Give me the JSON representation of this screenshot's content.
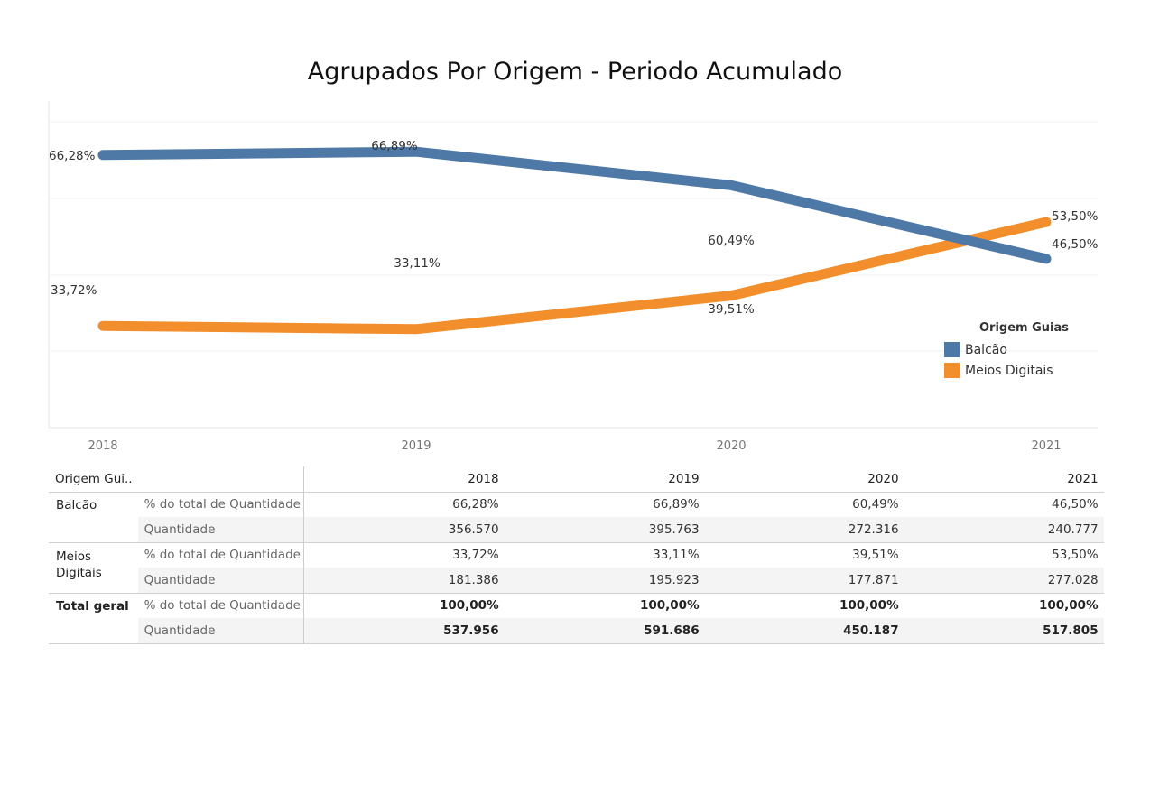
{
  "title": "Agrupados Por Origem - Periodo Acumulado",
  "chart_data": {
    "type": "line",
    "title": "Agrupados Por Origem - Periodo Acumulado",
    "x": [
      "2018",
      "2019",
      "2020",
      "2021"
    ],
    "ylim": [
      0,
      80
    ],
    "grid": true,
    "series": [
      {
        "name": "Balcão",
        "color": "#4e79a7",
        "values": [
          66.28,
          66.89,
          60.49,
          46.5
        ],
        "labels": [
          "66,28%",
          "66,89%",
          "60,49%",
          "46,50%"
        ]
      },
      {
        "name": "Meios Digitais",
        "color": "#f28e2b",
        "values": [
          33.72,
          33.11,
          39.51,
          53.5
        ],
        "labels": [
          "33,72%",
          "33,11%",
          "39,51%",
          "53,50%"
        ]
      }
    ],
    "legend": {
      "title": "Origem Guias",
      "position": "right"
    }
  },
  "table": {
    "header_label": "Origem Gui..",
    "years": [
      "2018",
      "2019",
      "2020",
      "2021"
    ],
    "groups": [
      {
        "name": "Balcão",
        "pct_label": "% do total de Quantidade ..",
        "pct": [
          "66,28%",
          "66,89%",
          "60,49%",
          "46,50%"
        ],
        "qty_label": "Quantidade",
        "qty": [
          "356.570",
          "395.763",
          "272.316",
          "240.777"
        ]
      },
      {
        "name": "Meios Digitais",
        "pct_label": "% do total de Quantidade ..",
        "pct": [
          "33,72%",
          "33,11%",
          "39,51%",
          "53,50%"
        ],
        "qty_label": "Quantidade",
        "qty": [
          "181.386",
          "195.923",
          "177.871",
          "277.028"
        ]
      },
      {
        "name": "Total geral",
        "pct_label": "% do total de Quantidade ..",
        "pct": [
          "100,00%",
          "100,00%",
          "100,00%",
          "100,00%"
        ],
        "qty_label": "Quantidade",
        "qty": [
          "537.956",
          "591.686",
          "450.187",
          "517.805"
        ]
      }
    ]
  }
}
